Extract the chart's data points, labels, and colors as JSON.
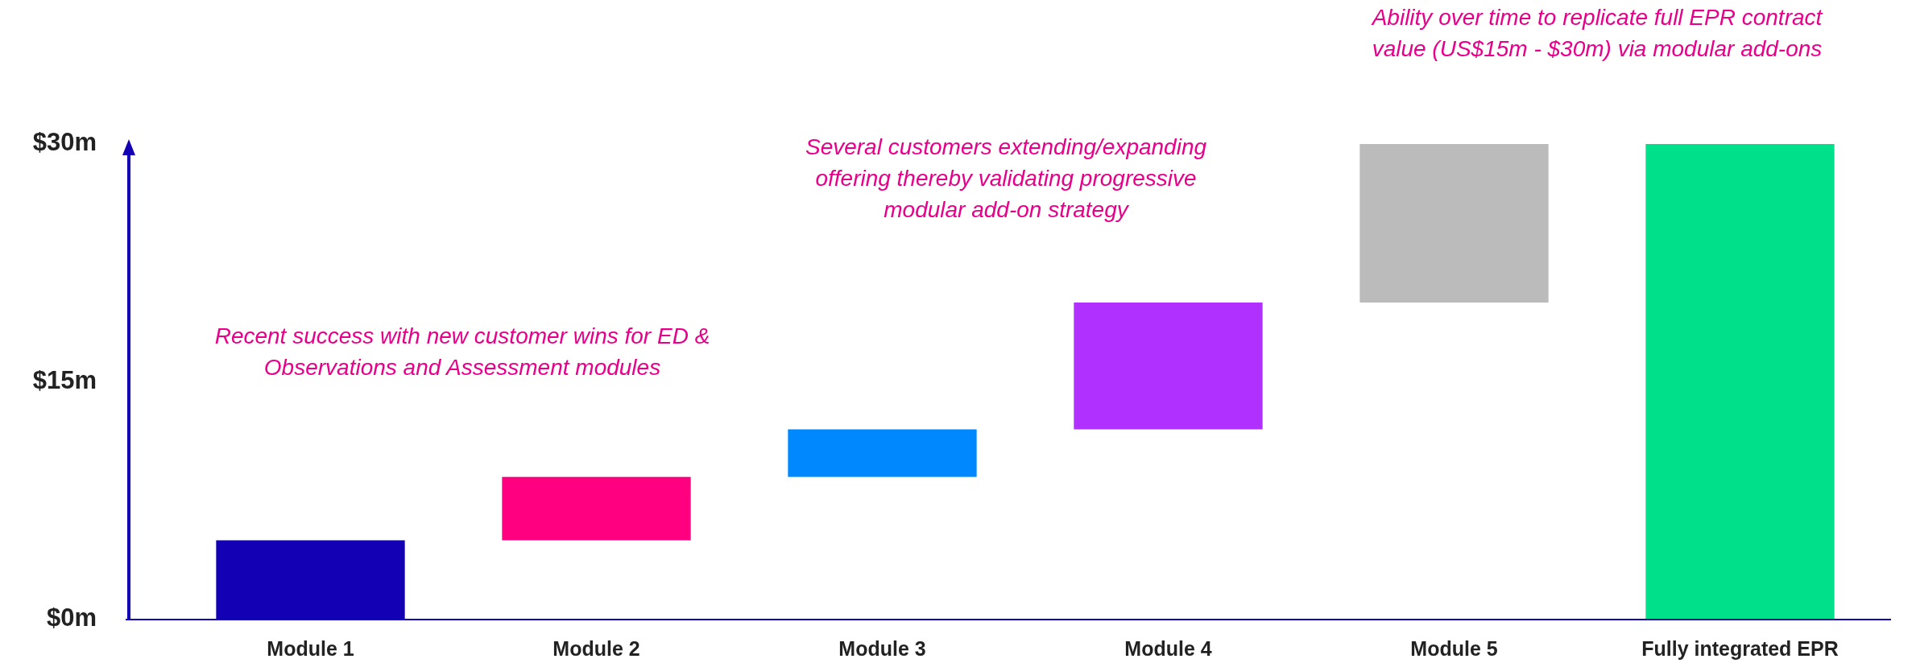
{
  "chart_data": {
    "type": "bar",
    "categories": [
      "Module 1",
      "Module 2",
      "Module 3",
      "Module 4",
      "Module 5",
      "Fully integrated EPR"
    ],
    "values": [
      5,
      4,
      3,
      8,
      10,
      30
    ],
    "base": [
      0,
      5,
      9,
      12,
      20,
      0
    ],
    "colors": [
      "#1400b4",
      "#ff0080",
      "#0088ff",
      "#b030ff",
      "#bbbbbb",
      "#00e08a"
    ],
    "ylim": [
      0,
      30
    ],
    "yticks": [
      {
        "value": 0,
        "label": "$0m"
      },
      {
        "value": 15,
        "label": "$15m"
      },
      {
        "value": 30,
        "label": "$30m"
      }
    ],
    "annotations": [
      "Recent success with new customer wins for ED & Observations and Assessment modules",
      "Several customers extending/expanding offering thereby validating progressive modular add-on strategy",
      "Ability over time to replicate full EPR contract value (US$15m - $30m) via modular add-ons"
    ]
  }
}
